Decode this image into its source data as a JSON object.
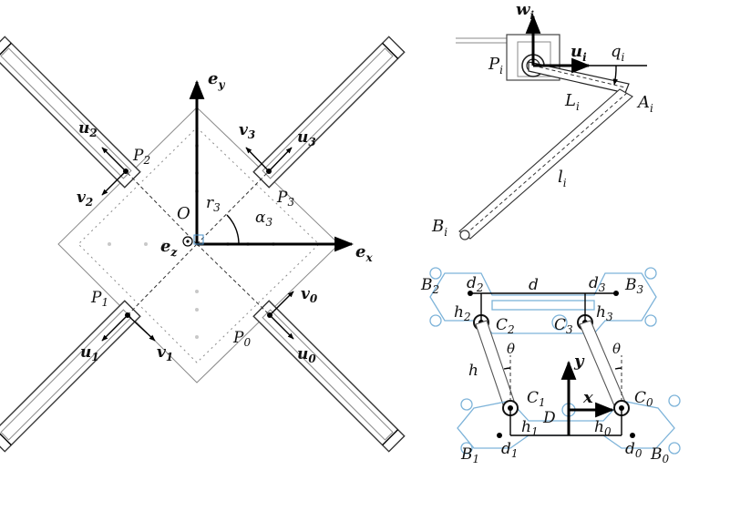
{
  "left": {
    "axis_ex": "e",
    "axis_ex_sub": "x",
    "axis_ey": "e",
    "axis_ey_sub": "y",
    "axis_ez": "e",
    "axis_ez_sub": "z",
    "origin": "O",
    "r3": "r",
    "r3_sub": "3",
    "alpha3": "α",
    "alpha3_sub": "3",
    "P0": "P",
    "P0_sub": "0",
    "P1": "P",
    "P1_sub": "1",
    "P2": "P",
    "P2_sub": "2",
    "P3": "P",
    "P3_sub": "3",
    "u0": "u",
    "u0_sub": "0",
    "u1": "u",
    "u1_sub": "1",
    "u2": "u",
    "u2_sub": "2",
    "u3": "u",
    "u3_sub": "3",
    "v0": "v",
    "v0_sub": "0",
    "v1": "v",
    "v1_sub": "1",
    "v2": "v",
    "v2_sub": "2",
    "v3": "v",
    "v3_sub": "3"
  },
  "top_right": {
    "w": "w",
    "w_sub": "i",
    "u": "u",
    "u_sub": "i",
    "q": "q",
    "q_sub": "i",
    "P": "P",
    "P_sub": "i",
    "L": "L",
    "L_sub": "i",
    "A": "A",
    "A_sub": "i",
    "l": "l",
    "l_sub": "i",
    "B": "B",
    "B_sub": "i"
  },
  "bottom_right": {
    "B2": "B",
    "B2_sub": "2",
    "B3": "B",
    "B3_sub": "3",
    "B1": "B",
    "B1_sub": "1",
    "B0": "B",
    "B0_sub": "0",
    "d2": "d",
    "d2_sub": "2",
    "d3": "d",
    "d3_sub": "3",
    "d1": "d",
    "d1_sub": "1",
    "d0": "d",
    "d0_sub": "0",
    "d": "d",
    "h2": "h",
    "h2_sub": "2",
    "h3": "h",
    "h3_sub": "3",
    "h1": "h",
    "h1_sub": "1",
    "h0": "h",
    "h0_sub": "0",
    "h": "h",
    "C2": "C",
    "C2_sub": "2",
    "C3": "C",
    "C3_sub": "3",
    "C1": "C",
    "C1_sub": "1",
    "C0": "C",
    "C0_sub": "0",
    "theta_left": "θ",
    "theta_right": "θ",
    "x": "x",
    "y": "y",
    "D": "D"
  }
}
